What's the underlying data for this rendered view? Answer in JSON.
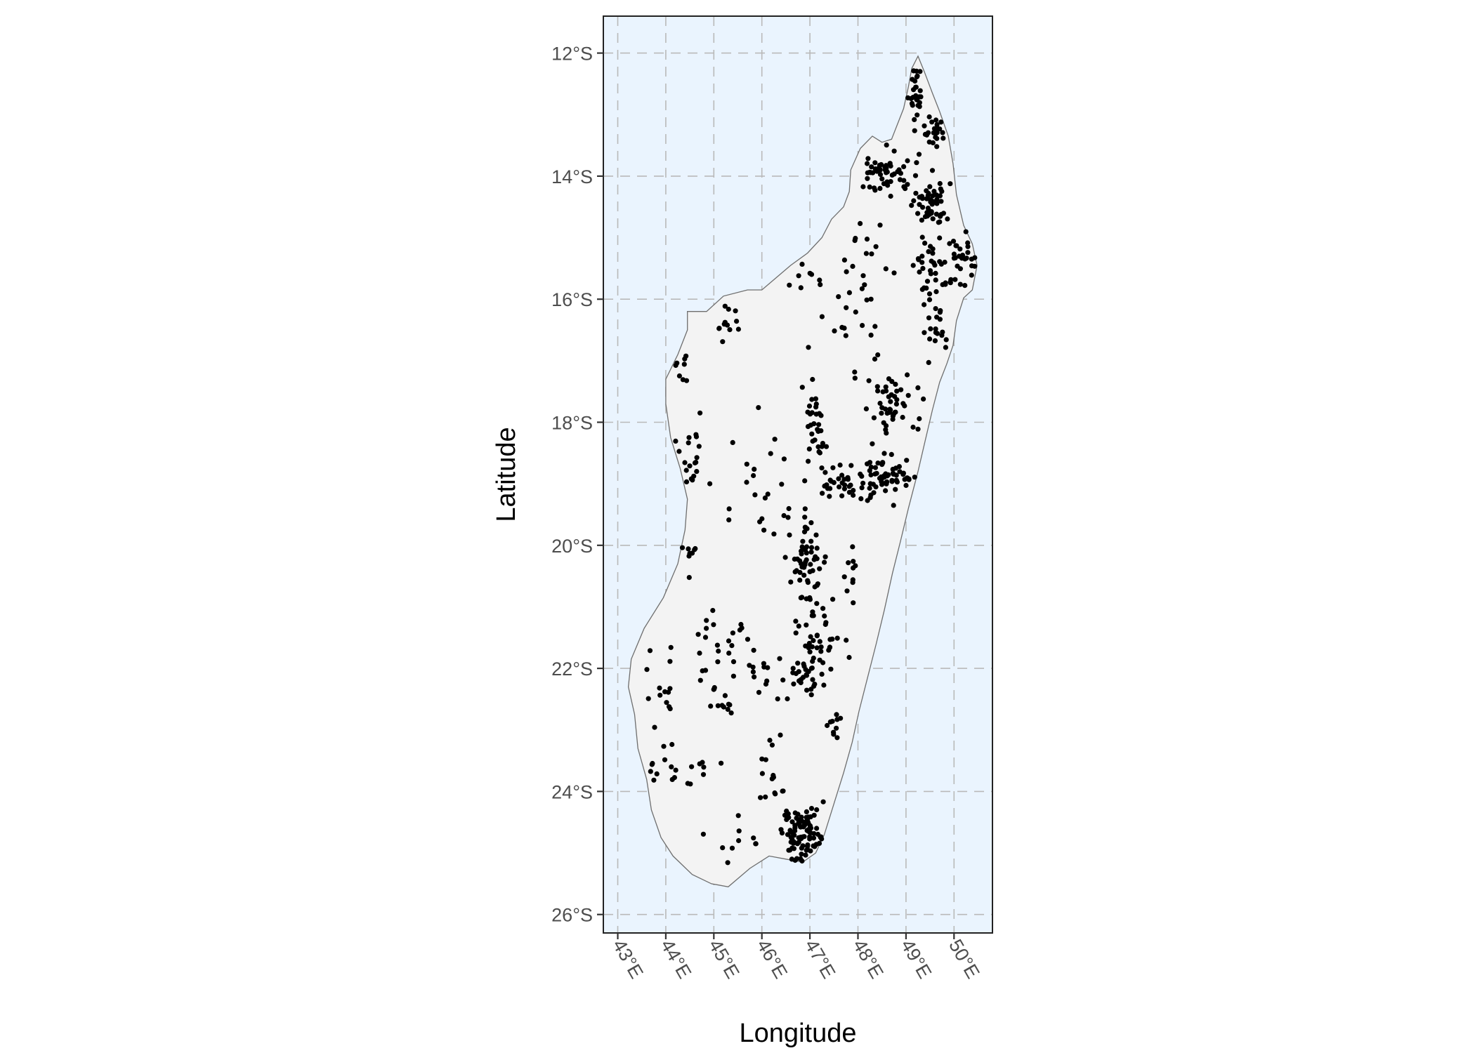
{
  "colors": {
    "ocean": "#EAF4FE",
    "land": "#F3F3F3",
    "coast": "#6E6E6E",
    "points": "#000000"
  },
  "chart_data": {
    "type": "scatter",
    "xlabel": "Longitude",
    "ylabel": "Latitude",
    "xlim": [
      42.7,
      50.8
    ],
    "ylim": [
      -26.3,
      -11.4
    ],
    "x_ticks": [
      {
        "value": 43,
        "label": "43°E"
      },
      {
        "value": 44,
        "label": "44°E"
      },
      {
        "value": 45,
        "label": "45°E"
      },
      {
        "value": 46,
        "label": "46°E"
      },
      {
        "value": 47,
        "label": "47°E"
      },
      {
        "value": 48,
        "label": "48°E"
      },
      {
        "value": 49,
        "label": "49°E"
      },
      {
        "value": 50,
        "label": "50°E"
      }
    ],
    "y_ticks": [
      {
        "value": -12,
        "label": "12°S"
      },
      {
        "value": -14,
        "label": "14°S"
      },
      {
        "value": -16,
        "label": "16°S"
      },
      {
        "value": -18,
        "label": "18°S"
      },
      {
        "value": -20,
        "label": "20°S"
      },
      {
        "value": -22,
        "label": "22°S"
      },
      {
        "value": -24,
        "label": "24°S"
      },
      {
        "value": -26,
        "label": "26°S"
      }
    ],
    "grid": true,
    "outline": [
      [
        49.25,
        -12.05
      ],
      [
        49.38,
        -12.3
      ],
      [
        49.55,
        -12.65
      ],
      [
        49.7,
        -12.95
      ],
      [
        49.88,
        -13.35
      ],
      [
        49.98,
        -13.8
      ],
      [
        50.05,
        -14.3
      ],
      [
        50.2,
        -14.8
      ],
      [
        50.38,
        -15.1
      ],
      [
        50.48,
        -15.45
      ],
      [
        50.38,
        -15.85
      ],
      [
        50.2,
        -15.98
      ],
      [
        50.05,
        -16.35
      ],
      [
        49.98,
        -16.75
      ],
      [
        49.85,
        -17.05
      ],
      [
        49.7,
        -17.35
      ],
      [
        49.55,
        -17.8
      ],
      [
        49.4,
        -18.3
      ],
      [
        49.25,
        -18.8
      ],
      [
        49.05,
        -19.4
      ],
      [
        48.88,
        -19.95
      ],
      [
        48.72,
        -20.45
      ],
      [
        48.55,
        -21.05
      ],
      [
        48.38,
        -21.6
      ],
      [
        48.2,
        -22.15
      ],
      [
        48.02,
        -22.7
      ],
      [
        47.88,
        -23.2
      ],
      [
        47.7,
        -23.7
      ],
      [
        47.5,
        -24.2
      ],
      [
        47.3,
        -24.7
      ],
      [
        47.12,
        -25.0
      ],
      [
        46.85,
        -25.15
      ],
      [
        46.5,
        -25.1
      ],
      [
        46.15,
        -25.05
      ],
      [
        45.75,
        -25.25
      ],
      [
        45.3,
        -25.55
      ],
      [
        44.95,
        -25.5
      ],
      [
        44.55,
        -25.35
      ],
      [
        44.15,
        -25.05
      ],
      [
        43.9,
        -24.75
      ],
      [
        43.7,
        -24.3
      ],
      [
        43.6,
        -23.8
      ],
      [
        43.42,
        -23.3
      ],
      [
        43.35,
        -22.75
      ],
      [
        43.22,
        -22.3
      ],
      [
        43.28,
        -21.85
      ],
      [
        43.55,
        -21.35
      ],
      [
        43.95,
        -20.85
      ],
      [
        44.25,
        -20.3
      ],
      [
        44.4,
        -19.75
      ],
      [
        44.45,
        -19.25
      ],
      [
        44.3,
        -18.75
      ],
      [
        44.1,
        -18.25
      ],
      [
        44.0,
        -17.7
      ],
      [
        44.0,
        -17.3
      ],
      [
        44.25,
        -16.9
      ],
      [
        44.45,
        -16.5
      ],
      [
        44.45,
        -16.2
      ],
      [
        44.85,
        -16.2
      ],
      [
        45.2,
        -15.95
      ],
      [
        45.7,
        -15.85
      ],
      [
        46.0,
        -15.85
      ],
      [
        46.3,
        -15.65
      ],
      [
        46.6,
        -15.45
      ],
      [
        46.95,
        -15.25
      ],
      [
        47.25,
        -15.0
      ],
      [
        47.45,
        -14.7
      ],
      [
        47.7,
        -14.5
      ],
      [
        47.82,
        -14.25
      ],
      [
        47.85,
        -13.9
      ],
      [
        48.05,
        -13.55
      ],
      [
        48.3,
        -13.35
      ],
      [
        48.5,
        -13.45
      ],
      [
        48.7,
        -13.4
      ],
      [
        48.95,
        -12.9
      ],
      [
        49.05,
        -12.55
      ],
      [
        49.12,
        -12.25
      ]
    ],
    "clusters": [
      {
        "center": [
          49.2,
          -12.6
        ],
        "spread": [
          0.15,
          0.35
        ],
        "n": 25
      },
      {
        "center": [
          49.5,
          -13.2
        ],
        "spread": [
          0.25,
          0.3
        ],
        "n": 25
      },
      {
        "center": [
          48.6,
          -13.95
        ],
        "spread": [
          0.55,
          0.3
        ],
        "n": 55
      },
      {
        "center": [
          49.55,
          -14.45
        ],
        "spread": [
          0.3,
          0.35
        ],
        "n": 55
      },
      {
        "center": [
          49.6,
          -15.45
        ],
        "spread": [
          0.5,
          0.5
        ],
        "n": 45
      },
      {
        "center": [
          50.3,
          -15.3
        ],
        "spread": [
          0.2,
          0.5
        ],
        "n": 20
      },
      {
        "center": [
          49.65,
          -16.55
        ],
        "spread": [
          0.2,
          0.35
        ],
        "n": 18
      },
      {
        "center": [
          48.75,
          -17.7
        ],
        "spread": [
          0.4,
          0.4
        ],
        "n": 45
      },
      {
        "center": [
          48.5,
          -18.9
        ],
        "spread": [
          0.7,
          0.35
        ],
        "n": 70
      },
      {
        "center": [
          47.6,
          -18.9
        ],
        "spread": [
          0.4,
          0.3
        ],
        "n": 25
      },
      {
        "center": [
          47.15,
          -18.0
        ],
        "spread": [
          0.2,
          0.6
        ],
        "n": 30
      },
      {
        "center": [
          46.9,
          -20.2
        ],
        "spread": [
          0.4,
          0.6
        ],
        "n": 55
      },
      {
        "center": [
          47.2,
          -21.5
        ],
        "spread": [
          0.35,
          0.6
        ],
        "n": 45
      },
      {
        "center": [
          46.8,
          -22.2
        ],
        "spread": [
          0.4,
          0.3
        ],
        "n": 25
      },
      {
        "center": [
          46.9,
          -24.7
        ],
        "spread": [
          0.45,
          0.35
        ],
        "n": 90
      },
      {
        "center": [
          47.5,
          -23.0
        ],
        "spread": [
          0.15,
          0.25
        ],
        "n": 10
      },
      {
        "center": [
          44.5,
          -18.5
        ],
        "spread": [
          0.3,
          0.7
        ],
        "n": 20
      },
      {
        "center": [
          45.3,
          -16.4
        ],
        "spread": [
          0.25,
          0.3
        ],
        "n": 12
      },
      {
        "center": [
          45.0,
          -21.6
        ],
        "spread": [
          0.3,
          0.4
        ],
        "n": 16
      },
      {
        "center": [
          45.2,
          -22.5
        ],
        "spread": [
          0.25,
          0.3
        ],
        "n": 12
      },
      {
        "center": [
          44.3,
          -23.6
        ],
        "spread": [
          0.5,
          0.35
        ],
        "n": 20
      },
      {
        "center": [
          43.9,
          -22.3
        ],
        "spread": [
          0.4,
          0.6
        ],
        "n": 14
      },
      {
        "center": [
          46.2,
          -23.7
        ],
        "spread": [
          0.35,
          0.5
        ],
        "n": 15
      },
      {
        "center": [
          45.9,
          -21.8
        ],
        "spread": [
          0.6,
          0.6
        ],
        "n": 20
      },
      {
        "center": [
          46.0,
          -19.0
        ],
        "spread": [
          0.8,
          0.8
        ],
        "n": 20
      },
      {
        "center": [
          47.8,
          -16.5
        ],
        "spread": [
          0.6,
          0.8
        ],
        "n": 20
      },
      {
        "center": [
          48.3,
          -15.2
        ],
        "spread": [
          0.6,
          0.6
        ],
        "n": 15
      },
      {
        "center": [
          44.3,
          -17.2
        ],
        "spread": [
          0.3,
          0.3
        ],
        "n": 8
      },
      {
        "center": [
          44.5,
          -20.1
        ],
        "spread": [
          0.2,
          0.3
        ],
        "n": 8
      },
      {
        "center": [
          45.4,
          -24.9
        ],
        "spread": [
          0.5,
          0.3
        ],
        "n": 10
      },
      {
        "center": [
          47.9,
          -20.4
        ],
        "spread": [
          0.3,
          0.5
        ],
        "n": 10
      },
      {
        "center": [
          46.9,
          -15.7
        ],
        "spread": [
          0.4,
          0.3
        ],
        "n": 8
      }
    ]
  }
}
